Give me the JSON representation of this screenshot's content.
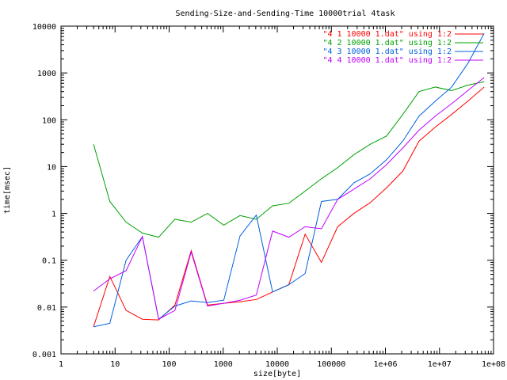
{
  "chart_data": {
    "type": "line",
    "title": "Sending-Size-and-Sending-Time 10000trial 4task",
    "xlabel": "size[byte]",
    "ylabel": "time[msec]",
    "xscale": "log",
    "yscale": "log",
    "xlim": [
      1,
      100000000
    ],
    "ylim": [
      0.001,
      10000
    ],
    "grid": false,
    "legend_position": "top-right",
    "x_ticks": [
      {
        "value": 1,
        "label": "1"
      },
      {
        "value": 10,
        "label": "10"
      },
      {
        "value": 100,
        "label": "100"
      },
      {
        "value": 1000,
        "label": "1000"
      },
      {
        "value": 10000,
        "label": "10000"
      },
      {
        "value": 100000,
        "label": "100000"
      },
      {
        "value": 1000000,
        "label": "1e+06"
      },
      {
        "value": 10000000,
        "label": "1e+07"
      },
      {
        "value": 100000000,
        "label": "1e+08"
      }
    ],
    "y_ticks": [
      {
        "value": 0.001,
        "label": "0.001"
      },
      {
        "value": 0.01,
        "label": "0.01"
      },
      {
        "value": 0.1,
        "label": "0.1"
      },
      {
        "value": 1,
        "label": "1"
      },
      {
        "value": 10,
        "label": "10"
      },
      {
        "value": 100,
        "label": "100"
      },
      {
        "value": 1000,
        "label": "1000"
      },
      {
        "value": 10000,
        "label": "10000"
      }
    ],
    "x": [
      4,
      8,
      16,
      32,
      64,
      128,
      256,
      512,
      1024,
      2048,
      4096,
      8192,
      16384,
      32768,
      65536,
      131072,
      262144,
      524288,
      1048576,
      2097152,
      4194304,
      8388608,
      16777216,
      33554432,
      67108864
    ],
    "series": [
      {
        "name": "\"4 1 10000 1.dat\" using 1:2",
        "color": "#ff0000",
        "values": [
          0.0038,
          0.045,
          0.0085,
          0.0055,
          0.0053,
          0.011,
          0.16,
          0.011,
          0.012,
          0.013,
          0.0145,
          0.021,
          0.03,
          0.36,
          0.09,
          0.52,
          1.0,
          1.7,
          3.5,
          8.0,
          35,
          70,
          130,
          250,
          500
        ]
      },
      {
        "name": "\"4 2 10000 1.dat\" using 1:2",
        "color": "#00a000",
        "values": [
          30,
          1.8,
          0.65,
          0.38,
          0.31,
          0.75,
          0.65,
          1.0,
          0.56,
          0.9,
          0.75,
          1.45,
          1.65,
          3.0,
          5.5,
          9.5,
          18,
          30,
          45,
          130,
          400,
          500,
          420,
          550,
          650
        ]
      },
      {
        "name": "\"4 3 10000 1.dat\" using 1:2",
        "color": "#0060e0",
        "values": [
          0.0038,
          0.0045,
          0.1,
          0.32,
          0.0055,
          0.0105,
          0.0135,
          0.0125,
          0.014,
          0.33,
          0.92,
          0.021,
          0.03,
          0.052,
          1.8,
          2.0,
          4.5,
          7.0,
          14,
          35,
          120,
          250,
          500,
          1600,
          7000
        ]
      },
      {
        "name": "\"4 4 10000 1.dat\" using 1:2",
        "color": "#c000ff",
        "values": [
          0.022,
          0.04,
          0.06,
          0.32,
          0.0055,
          0.0085,
          0.15,
          0.0105,
          0.012,
          0.014,
          0.018,
          0.42,
          0.31,
          0.52,
          0.47,
          2.0,
          3.3,
          5.5,
          11,
          25,
          60,
          120,
          220,
          420,
          800
        ]
      }
    ]
  }
}
